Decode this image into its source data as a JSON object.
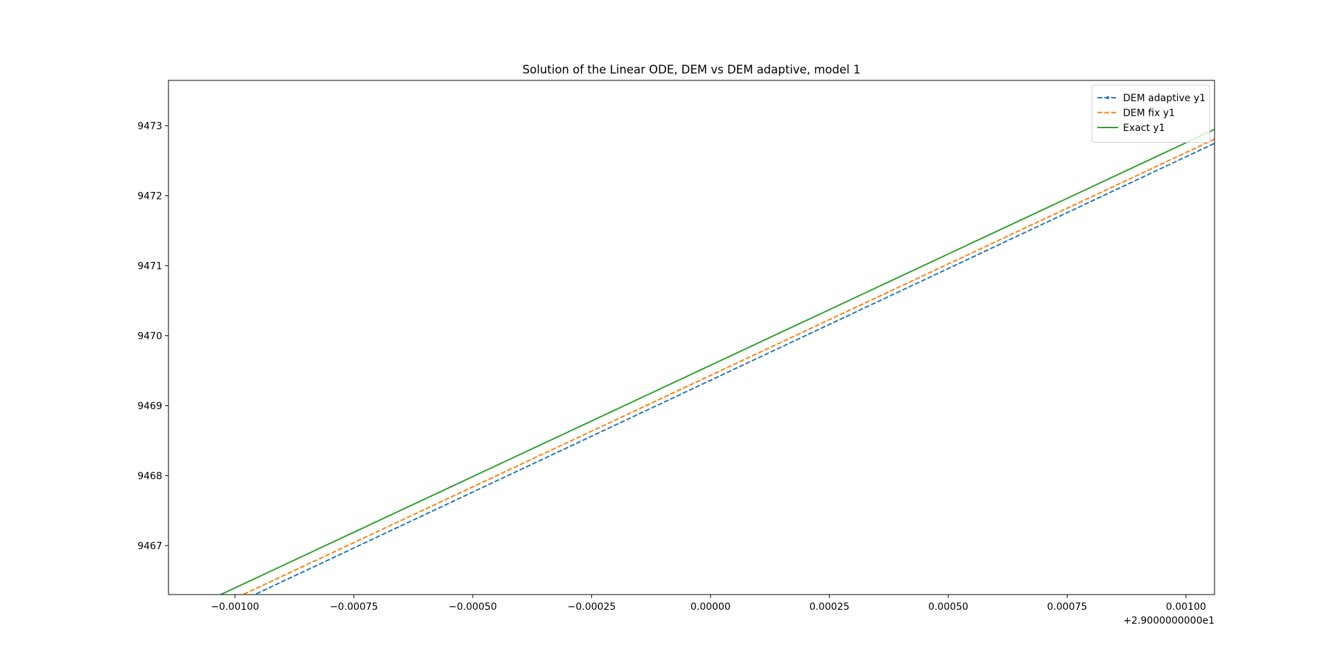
{
  "chart_data": {
    "type": "line",
    "title": "Solution of the Linear ODE, DEM vs DEM adaptive, model 1",
    "xlabel": "",
    "ylabel": "",
    "x_offset_label": "+2.9000000000e1",
    "xlim": [
      -0.00114,
      0.00106
    ],
    "ylim": [
      9466.3,
      9473.65
    ],
    "x_ticks": [
      -0.001,
      -0.00075,
      -0.0005,
      -0.00025,
      0.0,
      0.00025,
      0.0005,
      0.00075,
      0.001
    ],
    "x_tick_labels": [
      "−0.00100",
      "−0.00075",
      "−0.00050",
      "−0.00025",
      "0.00000",
      "0.00025",
      "0.00050",
      "0.00075",
      "0.00100"
    ],
    "y_ticks": [
      9467,
      9468,
      9469,
      9470,
      9471,
      9472,
      9473
    ],
    "y_tick_labels": [
      "9467",
      "9468",
      "9469",
      "9470",
      "9471",
      "9472",
      "9473"
    ],
    "grid": false,
    "legend_position": "top-right",
    "series": [
      {
        "name": "DEM adaptive y1",
        "color": "#1f77b4",
        "style": "dashed",
        "marker": "dot",
        "x": [
          -0.00114,
          0.00106
        ],
        "y": [
          9465.72,
          9472.75
        ]
      },
      {
        "name": "DEM fix y1",
        "color": "#ff7f0e",
        "style": "dashed",
        "marker": "none",
        "x": [
          -0.00114,
          0.00106
        ],
        "y": [
          9465.8,
          9472.81
        ]
      },
      {
        "name": "Exact y1",
        "color": "#2ca02c",
        "style": "solid",
        "marker": "none",
        "x": [
          -0.00114,
          0.00106
        ],
        "y": [
          9465.95,
          9472.95
        ]
      }
    ]
  }
}
